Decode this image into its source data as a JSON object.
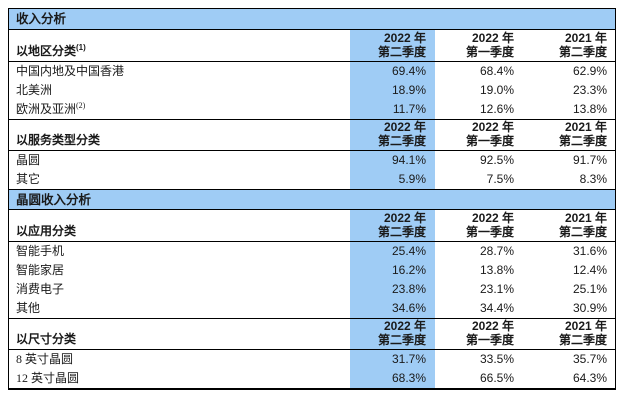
{
  "bands": {
    "revenue_title": "收入分析",
    "wafer_revenue_title": "晶圆收入分析"
  },
  "colors": {
    "highlight_blue": "#9FCCF5",
    "border_black": "#000000"
  },
  "columns": {
    "q2_2022": {
      "line1": "2022 年",
      "line2": "第二季度"
    },
    "q1_2022": {
      "line1": "2022 年",
      "line2": "第一季度"
    },
    "q2_2021": {
      "line1": "2021 年",
      "line2": "第二季度"
    }
  },
  "sections": [
    {
      "label": "以地区分类",
      "sup": "(1)",
      "rows": [
        {
          "label": "中国内地及中国香港",
          "q2_2022": "69.4%",
          "q1_2022": "68.4%",
          "q2_2021": "62.9%"
        },
        {
          "label": "北美洲",
          "q2_2022": "18.9%",
          "q1_2022": "19.0%",
          "q2_2021": "23.3%"
        },
        {
          "label": "欧洲及亚洲",
          "sup": "(2)",
          "q2_2022": "11.7%",
          "q1_2022": "12.6%",
          "q2_2021": "13.8%"
        }
      ]
    },
    {
      "label": "以服务类型分类",
      "rows": [
        {
          "label": "晶圆",
          "q2_2022": "94.1%",
          "q1_2022": "92.5%",
          "q2_2021": "91.7%"
        },
        {
          "label": "其它",
          "q2_2022": "5.9%",
          "q1_2022": "7.5%",
          "q2_2021": "8.3%"
        }
      ]
    },
    {
      "label": "以应用分类",
      "rows": [
        {
          "label": "智能手机",
          "q2_2022": "25.4%",
          "q1_2022": "28.7%",
          "q2_2021": "31.6%"
        },
        {
          "label": "智能家居",
          "q2_2022": "16.2%",
          "q1_2022": "13.8%",
          "q2_2021": "12.4%"
        },
        {
          "label": "消费电子",
          "q2_2022": "23.8%",
          "q1_2022": "23.1%",
          "q2_2021": "25.1%"
        },
        {
          "label": "其他",
          "q2_2022": "34.6%",
          "q1_2022": "34.4%",
          "q2_2021": "30.9%"
        }
      ]
    },
    {
      "label": "以尺寸分类",
      "rows": [
        {
          "label": "8 英寸晶圆",
          "q2_2022": "31.7%",
          "q1_2022": "33.5%",
          "q2_2021": "35.7%"
        },
        {
          "label": "12 英寸晶圆",
          "q2_2022": "68.3%",
          "q1_2022": "66.5%",
          "q2_2021": "64.3%"
        }
      ]
    }
  ]
}
